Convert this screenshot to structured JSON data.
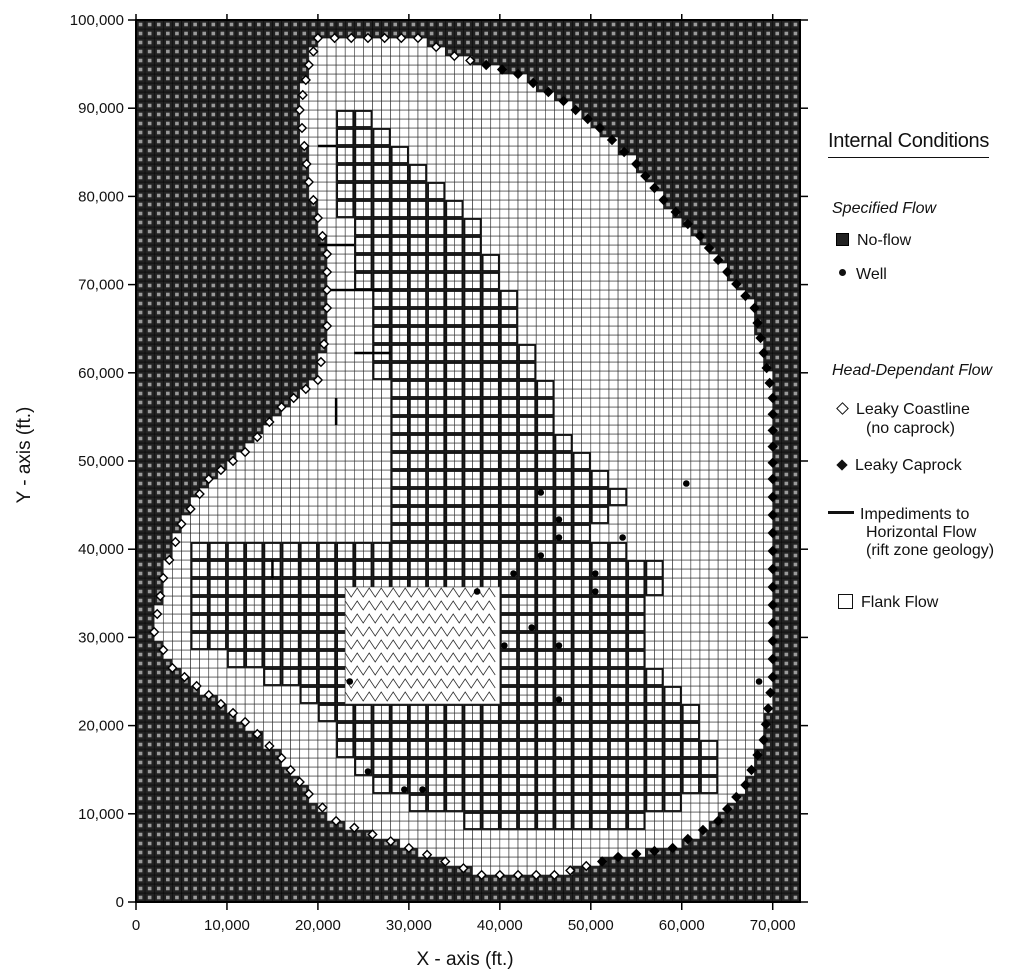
{
  "x_axis": {
    "title": "X - axis (ft.)",
    "ticks": [
      "0",
      "10,000",
      "20,000",
      "30,000",
      "40,000",
      "50,000",
      "60,000",
      "70,000"
    ],
    "range": [
      0,
      73000
    ]
  },
  "y_axis": {
    "title": "Y - axis (ft.)",
    "ticks": [
      "0",
      "10,000",
      "20,000",
      "30,000",
      "40,000",
      "50,000",
      "60,000",
      "70,000",
      "80,000",
      "90,000",
      "100,000"
    ],
    "range": [
      0,
      100000
    ]
  },
  "legend": {
    "title": "Internal Conditions",
    "specified_heading": "Specified Flow",
    "noflow_label": "No-flow",
    "well_label": "Well",
    "head_heading": "Head-Dependant Flow",
    "coast_label_1": "Leaky Coastline",
    "coast_label_2": "(no caprock)",
    "caprock_label": "Leaky Caprock",
    "imped_label_1": "Impediments to",
    "imped_label_2": "Horizontal Flow",
    "imped_label_3": "(rift zone geology)",
    "flank_label": "Flank Flow"
  },
  "colors": {
    "noflow": "#222222",
    "noflow_inner": "#9a9a9a",
    "grid": "#2a2a2a",
    "rift_line": "#111111",
    "flank": "#ffffff"
  }
}
